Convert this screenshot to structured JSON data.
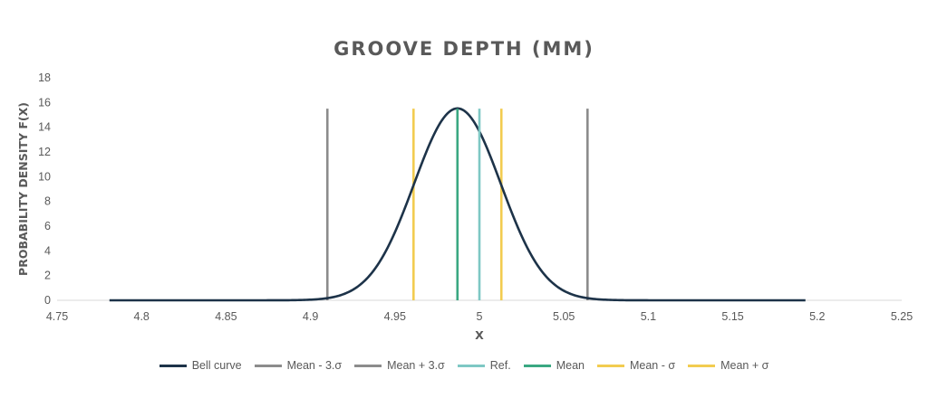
{
  "chart_data": {
    "type": "line",
    "title": "GROOVE  DEPTH  (MM)",
    "xlabel": "X",
    "ylabel": "PROBABILITY DENSITY F(X)",
    "xlim": [
      4.75,
      5.25
    ],
    "ylim": [
      0,
      18
    ],
    "x_ticks": [
      "4.75",
      "4.8",
      "4.85",
      "4.9",
      "4.95",
      "5",
      "5.05",
      "5.1",
      "5.15",
      "5.2",
      "5.25"
    ],
    "y_ticks": [
      "0",
      "2",
      "4",
      "6",
      "8",
      "10",
      "12",
      "14",
      "16",
      "18"
    ],
    "grid": false,
    "legend_position": "bottom",
    "bell_curve": {
      "mean": 4.987,
      "sigma": 0.0257,
      "x_start": 4.781,
      "x_end": 5.193
    },
    "series": [
      {
        "name": "Bell curve",
        "color": "#1d3349",
        "kind": "curve"
      },
      {
        "name": "Mean - 3.σ",
        "color": "#8c8c8c",
        "kind": "vline",
        "x": 4.91,
        "y_top": 15.5
      },
      {
        "name": "Mean + 3.σ",
        "color": "#8c8c8c",
        "kind": "vline",
        "x": 5.064,
        "y_top": 15.5
      },
      {
        "name": "Ref.",
        "color": "#7ec8c4",
        "kind": "vline",
        "x": 5.0,
        "y_top": 15.5
      },
      {
        "name": "Mean",
        "color": "#3aa882",
        "kind": "vline",
        "x": 4.987,
        "y_top": 15.5
      },
      {
        "name": "Mean - σ",
        "color": "#f2cc50",
        "kind": "vline",
        "x": 4.961,
        "y_top": 15.5
      },
      {
        "name": "Mean + σ",
        "color": "#f2cc50",
        "kind": "vline",
        "x": 5.013,
        "y_top": 15.5
      }
    ]
  }
}
